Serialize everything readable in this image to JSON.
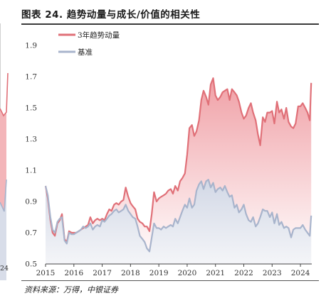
{
  "figure": {
    "title": "图表 24. 趋势动量与成长/价值的相关性",
    "source": "资料来源：万得，中银证券",
    "clipped_tick_fragment": "24"
  },
  "colors": {
    "momentum_line": "#e07078",
    "momentum_fill_top": "#f0a0a6",
    "baseline_line": "#a8b4cc",
    "baseline_fill_top": "#d2d8e6"
  },
  "chart_data": {
    "type": "area",
    "title": "",
    "xlabel": "",
    "ylabel": "",
    "x_ticks": [
      "2015",
      "2016",
      "2017",
      "2018",
      "2019",
      "2020",
      "2021",
      "2022",
      "2023",
      "2024"
    ],
    "y_ticks": [
      "0.5",
      "0.7",
      "0.9",
      "1.1",
      "1.3",
      "1.5",
      "1.7",
      "1.9"
    ],
    "ylim": [
      0.5,
      1.9
    ],
    "xlim": [
      2015.0,
      2024.4
    ],
    "grid": false,
    "legend_position": "top-left",
    "series": [
      {
        "name": "3年趋势动量",
        "color": "#e07078",
        "x": [
          2015.0,
          2015.08,
          2015.17,
          2015.25,
          2015.33,
          2015.42,
          2015.5,
          2015.58,
          2015.67,
          2015.75,
          2015.83,
          2015.92,
          2016.0,
          2016.08,
          2016.17,
          2016.25,
          2016.33,
          2016.42,
          2016.5,
          2016.58,
          2016.67,
          2016.75,
          2016.83,
          2016.92,
          2017.0,
          2017.08,
          2017.17,
          2017.25,
          2017.33,
          2017.42,
          2017.5,
          2017.58,
          2017.67,
          2017.75,
          2017.83,
          2017.92,
          2018.0,
          2018.08,
          2018.17,
          2018.25,
          2018.33,
          2018.42,
          2018.5,
          2018.58,
          2018.67,
          2018.75,
          2018.83,
          2018.92,
          2019.0,
          2019.08,
          2019.17,
          2019.25,
          2019.33,
          2019.42,
          2019.5,
          2019.58,
          2019.67,
          2019.75,
          2019.83,
          2019.92,
          2020.0,
          2020.08,
          2020.17,
          2020.25,
          2020.33,
          2020.42,
          2020.5,
          2020.58,
          2020.67,
          2020.75,
          2020.83,
          2020.92,
          2021.0,
          2021.08,
          2021.17,
          2021.25,
          2021.33,
          2021.42,
          2021.5,
          2021.58,
          2021.67,
          2021.75,
          2021.83,
          2021.92,
          2022.0,
          2022.08,
          2022.17,
          2022.25,
          2022.33,
          2022.42,
          2022.5,
          2022.58,
          2022.67,
          2022.75,
          2022.83,
          2022.92,
          2023.0,
          2023.08,
          2023.17,
          2023.25,
          2023.33,
          2023.42,
          2023.5,
          2023.58,
          2023.67,
          2023.75,
          2023.83,
          2023.92,
          2024.0,
          2024.08,
          2024.17,
          2024.25,
          2024.33,
          2024.38
        ],
        "values": [
          1.0,
          0.92,
          0.78,
          0.7,
          0.68,
          0.76,
          0.78,
          0.82,
          0.66,
          0.64,
          0.71,
          0.7,
          0.7,
          0.7,
          0.71,
          0.72,
          0.73,
          0.74,
          0.75,
          0.8,
          0.76,
          0.78,
          0.79,
          0.78,
          0.79,
          0.78,
          0.82,
          0.85,
          0.84,
          0.88,
          0.89,
          0.88,
          0.9,
          0.91,
          0.99,
          0.93,
          0.89,
          0.87,
          0.85,
          0.79,
          0.77,
          0.76,
          0.74,
          0.74,
          0.71,
          0.82,
          0.96,
          0.9,
          0.92,
          0.93,
          0.94,
          0.95,
          0.97,
          0.98,
          0.95,
          1.0,
          0.97,
          1.03,
          1.05,
          1.08,
          1.2,
          1.37,
          1.39,
          1.32,
          1.35,
          1.42,
          1.55,
          1.61,
          1.57,
          1.52,
          1.65,
          1.69,
          1.58,
          1.55,
          1.57,
          1.6,
          1.61,
          1.62,
          1.55,
          1.62,
          1.6,
          1.58,
          1.54,
          1.47,
          1.43,
          1.45,
          1.5,
          1.53,
          1.47,
          1.42,
          1.33,
          1.26,
          1.44,
          1.41,
          1.47,
          1.47,
          1.48,
          1.4,
          1.54,
          1.47,
          1.49,
          1.43,
          1.5,
          1.41,
          1.38,
          1.37,
          1.4,
          1.51,
          1.51,
          1.53,
          1.5,
          1.47,
          1.42,
          1.66
        ]
      },
      {
        "name": "基准",
        "color": "#a8b4cc",
        "x": [
          2015.0,
          2015.08,
          2015.17,
          2015.25,
          2015.33,
          2015.42,
          2015.5,
          2015.58,
          2015.67,
          2015.75,
          2015.83,
          2015.92,
          2016.0,
          2016.08,
          2016.17,
          2016.25,
          2016.33,
          2016.42,
          2016.5,
          2016.58,
          2016.67,
          2016.75,
          2016.83,
          2016.92,
          2017.0,
          2017.08,
          2017.17,
          2017.25,
          2017.33,
          2017.42,
          2017.5,
          2017.58,
          2017.67,
          2017.75,
          2017.83,
          2017.92,
          2018.0,
          2018.08,
          2018.17,
          2018.25,
          2018.33,
          2018.42,
          2018.5,
          2018.58,
          2018.67,
          2018.75,
          2018.83,
          2018.92,
          2019.0,
          2019.08,
          2019.17,
          2019.25,
          2019.33,
          2019.42,
          2019.5,
          2019.58,
          2019.67,
          2019.75,
          2019.83,
          2019.92,
          2020.0,
          2020.08,
          2020.17,
          2020.25,
          2020.33,
          2020.42,
          2020.5,
          2020.58,
          2020.67,
          2020.75,
          2020.83,
          2020.92,
          2021.0,
          2021.08,
          2021.17,
          2021.25,
          2021.33,
          2021.42,
          2021.5,
          2021.58,
          2021.67,
          2021.75,
          2021.83,
          2021.92,
          2022.0,
          2022.08,
          2022.17,
          2022.25,
          2022.33,
          2022.42,
          2022.5,
          2022.58,
          2022.67,
          2022.75,
          2022.83,
          2022.92,
          2023.0,
          2023.08,
          2023.17,
          2023.25,
          2023.33,
          2023.42,
          2023.5,
          2023.58,
          2023.67,
          2023.75,
          2023.83,
          2023.92,
          2024.0,
          2024.08,
          2024.17,
          2024.25,
          2024.33,
          2024.38
        ],
        "values": [
          1.0,
          0.94,
          0.8,
          0.72,
          0.7,
          0.77,
          0.79,
          0.8,
          0.65,
          0.63,
          0.7,
          0.69,
          0.69,
          0.7,
          0.71,
          0.72,
          0.74,
          0.73,
          0.74,
          0.76,
          0.72,
          0.74,
          0.75,
          0.74,
          0.78,
          0.77,
          0.79,
          0.81,
          0.82,
          0.84,
          0.85,
          0.83,
          0.84,
          0.85,
          0.88,
          0.84,
          0.82,
          0.8,
          0.79,
          0.74,
          0.68,
          0.66,
          0.64,
          0.6,
          0.58,
          0.67,
          0.76,
          0.73,
          0.73,
          0.72,
          0.74,
          0.73,
          0.74,
          0.75,
          0.74,
          0.79,
          0.76,
          0.8,
          0.84,
          0.88,
          0.86,
          0.92,
          0.86,
          0.88,
          0.97,
          1.01,
          1.03,
          0.98,
          1.03,
          1.04,
          0.99,
          1.02,
          0.96,
          0.98,
          0.99,
          0.97,
          1.0,
          0.96,
          0.93,
          0.94,
          0.86,
          0.88,
          0.83,
          0.85,
          0.88,
          0.82,
          0.78,
          0.77,
          0.8,
          0.74,
          0.76,
          0.8,
          0.85,
          0.84,
          0.84,
          0.8,
          0.83,
          0.76,
          0.82,
          0.75,
          0.77,
          0.73,
          0.74,
          0.73,
          0.67,
          0.72,
          0.73,
          0.73,
          0.73,
          0.75,
          0.72,
          0.7,
          0.68,
          0.81
        ]
      }
    ]
  }
}
